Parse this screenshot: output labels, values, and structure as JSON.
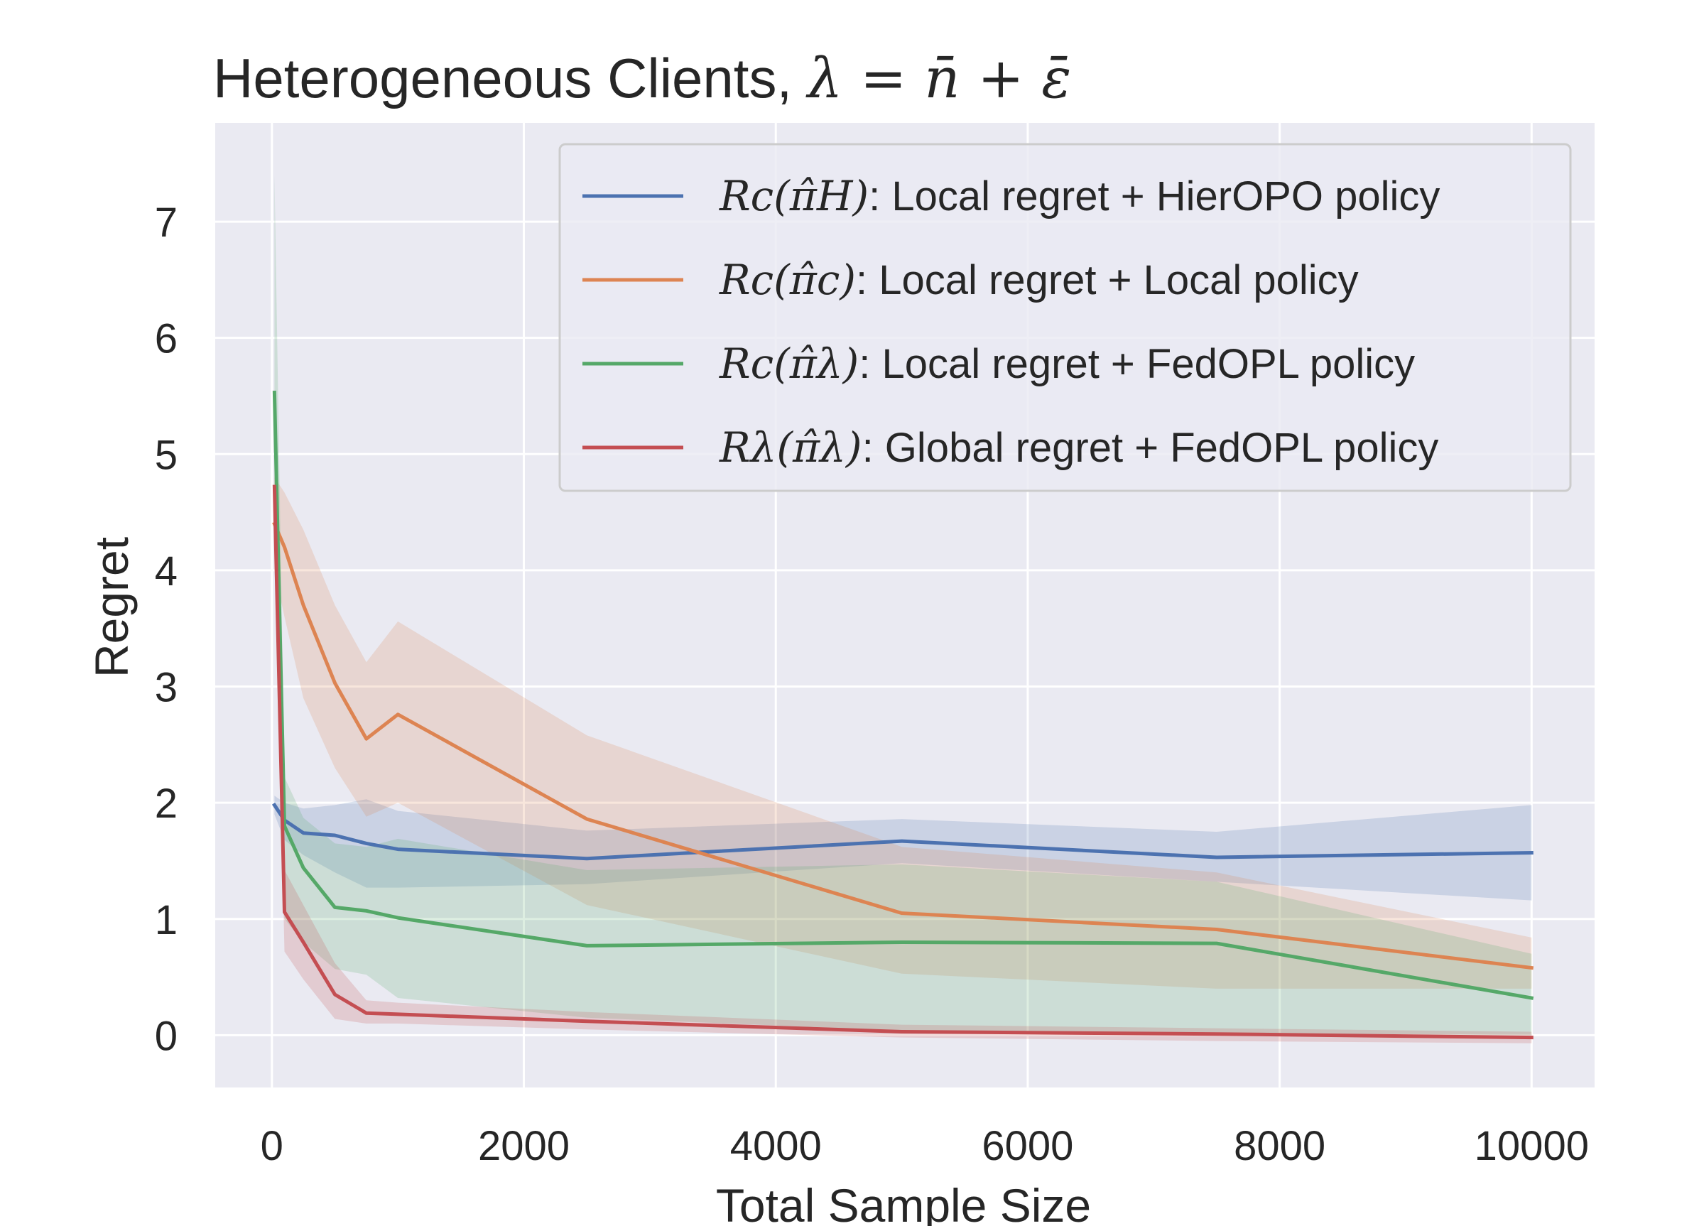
{
  "chart_data": {
    "type": "line",
    "title": "Heterogeneous Clients, λ = n̄ + ε̄",
    "title_prefix": "Heterogeneous Clients, ",
    "title_math": "λ = n̄ + ε̄",
    "xlabel": "Total Sample Size",
    "ylabel": "Regret",
    "xlim": [
      -450,
      10500
    ],
    "ylim": [
      -0.45,
      7.85
    ],
    "xticks": [
      0,
      2000,
      4000,
      6000,
      8000,
      10000
    ],
    "yticks": [
      0,
      1,
      2,
      3,
      4,
      5,
      6,
      7
    ],
    "grid": true,
    "legend_position": "top-right",
    "x": [
      20,
      100,
      250,
      500,
      750,
      1000,
      2500,
      5000,
      7500,
      10000
    ],
    "series": [
      {
        "name": "R_c(π̂_H): Local regret + HierOPO policy",
        "legend_math": "Rc(π̂H)",
        "legend_text": ": Local regret + HierOPO policy",
        "color": "#4c72b0",
        "values": [
          1.98,
          1.85,
          1.74,
          1.72,
          1.65,
          1.6,
          1.52,
          1.67,
          1.53,
          1.57
        ],
        "lower": [
          1.9,
          1.68,
          1.55,
          1.4,
          1.27,
          1.27,
          1.3,
          1.48,
          1.32,
          1.16
        ],
        "upper": [
          2.06,
          2.0,
          1.95,
          1.98,
          2.03,
          1.93,
          1.76,
          1.86,
          1.75,
          1.98
        ]
      },
      {
        "name": "R_c(π̂_c): Local regret + Local policy",
        "legend_math": "Rc(π̂c)",
        "legend_text": ": Local regret + Local policy",
        "color": "#dd8452",
        "values": [
          4.4,
          4.2,
          3.7,
          3.03,
          2.55,
          2.76,
          1.86,
          1.05,
          0.91,
          0.58
        ],
        "lower": [
          4.0,
          3.6,
          2.9,
          2.3,
          1.88,
          2.0,
          1.12,
          0.53,
          0.4,
          0.4
        ],
        "upper": [
          4.8,
          4.67,
          4.35,
          3.7,
          3.21,
          3.56,
          2.58,
          1.62,
          1.4,
          0.84
        ]
      },
      {
        "name": "R_c(π̂_λ): Local regret + FedOPL policy",
        "legend_math": "Rc(π̂λ)",
        "legend_text": ": Local regret + FedOPL policy",
        "color": "#55a868",
        "values": [
          5.53,
          1.8,
          1.44,
          1.1,
          1.07,
          1.01,
          0.77,
          0.8,
          0.79,
          0.32
        ],
        "lower": [
          4.2,
          1.0,
          0.8,
          0.57,
          0.52,
          0.32,
          0.15,
          0.04,
          0.02,
          0.0
        ],
        "upper": [
          7.4,
          2.22,
          1.87,
          1.65,
          1.62,
          1.69,
          1.42,
          1.47,
          1.32,
          0.7
        ]
      },
      {
        "name": "R_λ(π̂_λ): Global regret + FedOPL policy",
        "legend_math": "Rλ(π̂λ)",
        "legend_text": ": Global regret + FedOPL policy",
        "color": "#c44e52",
        "values": [
          4.72,
          1.06,
          0.8,
          0.35,
          0.19,
          0.18,
          0.12,
          0.03,
          0.01,
          -0.02
        ],
        "lower": [
          4.5,
          0.72,
          0.48,
          0.14,
          0.1,
          0.1,
          0.05,
          -0.02,
          -0.05,
          -0.07
        ],
        "upper": [
          4.95,
          1.42,
          1.12,
          0.62,
          0.3,
          0.28,
          0.2,
          0.09,
          0.06,
          0.03
        ]
      }
    ]
  }
}
